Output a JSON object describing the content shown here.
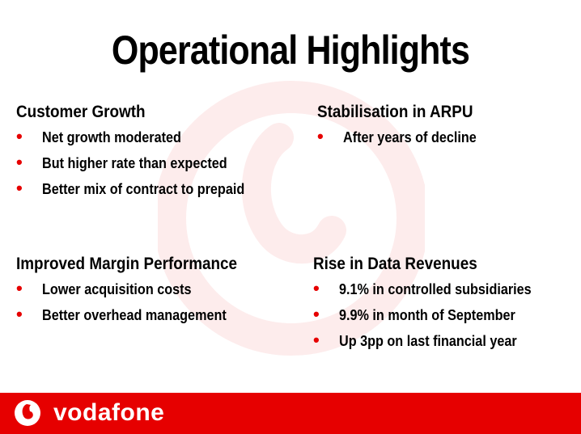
{
  "colors": {
    "brand_red": "#e60000",
    "watermark": "#fdecec",
    "text": "#000000"
  },
  "title": "Operational Highlights",
  "sections": {
    "customer_growth": {
      "heading": "Customer Growth",
      "items": [
        "Net growth moderated",
        "But higher rate than expected",
        "Better mix of contract to prepaid"
      ]
    },
    "arpu": {
      "heading": "Stabilisation in ARPU",
      "items": [
        "After years of decline"
      ]
    },
    "margin": {
      "heading": "Improved Margin Performance",
      "items": [
        "Lower acquisition costs",
        "Better overhead management"
      ]
    },
    "data_revenues": {
      "heading": "Rise in Data Revenues",
      "items": [
        "9.1% in controlled subsidiaries",
        "9.9% in month of September",
        "Up 3pp on last financial year"
      ]
    }
  },
  "bullet_glyph": "•",
  "footer": {
    "brand": "vodafone",
    "logo_icon": "vodafone-speechmark-icon"
  }
}
